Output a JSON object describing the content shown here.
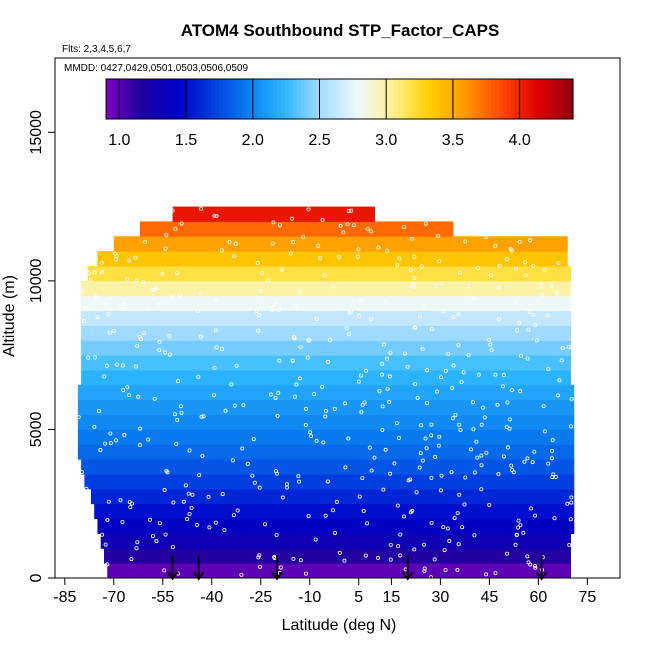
{
  "chart_data": {
    "type": "heatmap",
    "title": "ATOM4 Southbound STP_Factor_CAPS",
    "flights_note": "Flts: 2,3,4,5,6,7",
    "dates_note": "MMDD: 0427,0429,0501,0503,0506,0509",
    "xlabel": "Latitude (deg N)",
    "ylabel": "Altitude (m)",
    "xlim": [
      -88,
      85
    ],
    "ylim": [
      0,
      17500
    ],
    "x_ticks": [
      -85,
      -70,
      -55,
      -40,
      -25,
      -10,
      5,
      15,
      30,
      45,
      60,
      75
    ],
    "x_tick_labels": [
      "-85",
      "-70",
      "-55",
      "-40",
      "-25",
      "-10",
      "5",
      "15",
      "30",
      "45",
      "60",
      "75"
    ],
    "y_ticks": [
      0,
      5000,
      10000,
      15000
    ],
    "y_tick_labels": [
      "0",
      "5000",
      "10000",
      "15000"
    ],
    "colorbar": {
      "range": [
        0.9,
        4.4
      ],
      "ticks": [
        1.0,
        1.5,
        2.0,
        2.5,
        3.0,
        3.5,
        4.0
      ],
      "tick_labels": [
        "1.0",
        "1.5",
        "2.0",
        "2.5",
        "3.0",
        "3.5",
        "4.0"
      ],
      "colors": [
        "#8000c0",
        "#1c00a0",
        "#0000c8",
        "#0040e0",
        "#0a80f0",
        "#30b8ff",
        "#a8dcff",
        "#eef8ff",
        "#fff090",
        "#ffd000",
        "#ff9800",
        "#ff4800",
        "#e00000",
        "#900010"
      ]
    },
    "bands": [
      {
        "alt": [
          0,
          500
        ],
        "lat": [
          -72,
          70
        ],
        "value": 1.0
      },
      {
        "alt": [
          500,
          1000
        ],
        "lat": [
          -73,
          70
        ],
        "value": 1.15
      },
      {
        "alt": [
          1000,
          1500
        ],
        "lat": [
          -74,
          70
        ],
        "value": 1.3
      },
      {
        "alt": [
          1500,
          2000
        ],
        "lat": [
          -75,
          71
        ],
        "value": 1.4
      },
      {
        "alt": [
          2000,
          2500
        ],
        "lat": [
          -76,
          71
        ],
        "value": 1.5
      },
      {
        "alt": [
          2500,
          3000
        ],
        "lat": [
          -77,
          71
        ],
        "value": 1.6
      },
      {
        "alt": [
          3000,
          3500
        ],
        "lat": [
          -79,
          71
        ],
        "value": 1.7
      },
      {
        "alt": [
          3500,
          4000
        ],
        "lat": [
          -80,
          71
        ],
        "value": 1.8
      },
      {
        "alt": [
          4000,
          4500
        ],
        "lat": [
          -81,
          71
        ],
        "value": 1.88
      },
      {
        "alt": [
          4500,
          5000
        ],
        "lat": [
          -81,
          71
        ],
        "value": 1.95
      },
      {
        "alt": [
          5000,
          5500
        ],
        "lat": [
          -81,
          71
        ],
        "value": 2.02
      },
      {
        "alt": [
          5500,
          6000
        ],
        "lat": [
          -81,
          71
        ],
        "value": 2.08
      },
      {
        "alt": [
          6000,
          6500
        ],
        "lat": [
          -81,
          71
        ],
        "value": 2.15
      },
      {
        "alt": [
          6500,
          7000
        ],
        "lat": [
          -80,
          70
        ],
        "value": 2.22
      },
      {
        "alt": [
          7000,
          7500
        ],
        "lat": [
          -80,
          70
        ],
        "value": 2.3
      },
      {
        "alt": [
          7500,
          8000
        ],
        "lat": [
          -80,
          70
        ],
        "value": 2.4
      },
      {
        "alt": [
          8000,
          8500
        ],
        "lat": [
          -80,
          70
        ],
        "value": 2.5
      },
      {
        "alt": [
          8500,
          9000
        ],
        "lat": [
          -80,
          70
        ],
        "value": 2.62
      },
      {
        "alt": [
          9000,
          9500
        ],
        "lat": [
          -80,
          70
        ],
        "value": 2.8
      },
      {
        "alt": [
          9500,
          10000
        ],
        "lat": [
          -80,
          70
        ],
        "value": 3.0
      },
      {
        "alt": [
          10000,
          10500
        ],
        "lat": [
          -78,
          70
        ],
        "value": 3.2
      },
      {
        "alt": [
          10500,
          11000
        ],
        "lat": [
          -75,
          69
        ],
        "value": 3.38
      },
      {
        "alt": [
          11000,
          11500
        ],
        "lat": [
          -70,
          69
        ],
        "value": 3.55
      },
      {
        "alt": [
          11500,
          12000
        ],
        "lat": [
          -62,
          34
        ],
        "value": 3.75
      },
      {
        "alt": [
          12000,
          12500
        ],
        "lat": [
          -52,
          10
        ],
        "value": 4.05
      }
    ],
    "profile_markers_lat": [
      -52,
      -44,
      -20,
      20,
      61
    ]
  }
}
